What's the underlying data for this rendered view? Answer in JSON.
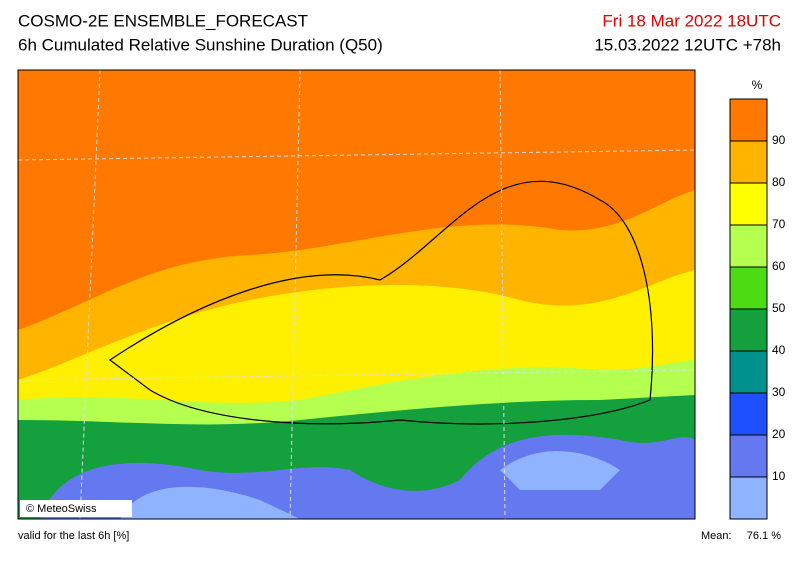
{
  "header": {
    "title": "COSMO-2E ENSEMBLE_FORECAST",
    "subtitle": "6h Cumulated Relative Sunshine Duration (Q50)",
    "valid_time": "Fri 18 Mar 2022 18UTC",
    "run": "15.03.2022 12UTC +78h"
  },
  "colorbar": {
    "unit": "%",
    "levels": [
      0,
      10,
      20,
      30,
      40,
      50,
      60,
      70,
      80,
      90,
      100
    ],
    "colors": [
      "#8fb3ff",
      "#6478f0",
      "#1e50ff",
      "#00918c",
      "#14a03c",
      "#4bdc14",
      "#b4ff50",
      "#ffff00",
      "#ffb400",
      "#ff7800"
    ],
    "ticks": [
      10,
      20,
      30,
      40,
      50,
      60,
      70,
      80,
      90
    ]
  },
  "map": {
    "copyright": "© MeteoSwiss"
  },
  "footer": {
    "note": "valid for the last 6h [%]",
    "mean_label": "Mean:",
    "mean_value": "76.1 %"
  }
}
